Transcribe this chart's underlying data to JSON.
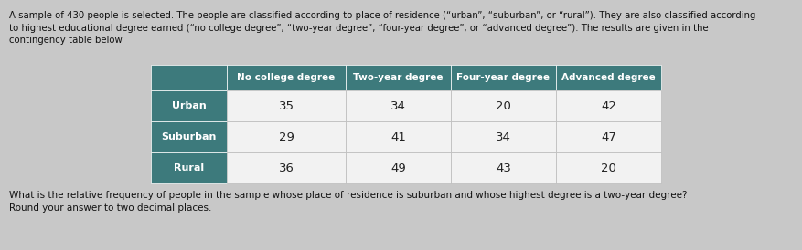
{
  "intro_text_line1": "A sample of 430 people is selected. The people are classified according to place of residence (“urban”, “suburban”, or “rural”). They are also classified according",
  "intro_text_line2": "to highest educational degree earned (“no college degree”, “two-year degree”, “four-year degree”, or “advanced degree”). The results are given in the",
  "intro_text_line3": "contingency table below.",
  "question_text": "What is the relative frequency of people in the sample whose place of residence is suburban and whose highest degree is a two-year degree?",
  "round_text": "Round your answer to two decimal places.",
  "col_headers": [
    "No college degree",
    "Two-year degree",
    "Four-year degree",
    "Advanced degree"
  ],
  "row_headers": [
    "Urban",
    "Suburban",
    "Rural"
  ],
  "table_data": [
    [
      35,
      34,
      20,
      42
    ],
    [
      29,
      41,
      34,
      47
    ],
    [
      36,
      49,
      43,
      20
    ]
  ],
  "header_bg": "#3d7a7c",
  "row_header_bg": "#3d7a7c",
  "cell_bg": "#f2f2f2",
  "header_text_color": "#ffffff",
  "cell_text_color": "#222222",
  "background_color": "#c8c8c8",
  "text_color": "#111111"
}
